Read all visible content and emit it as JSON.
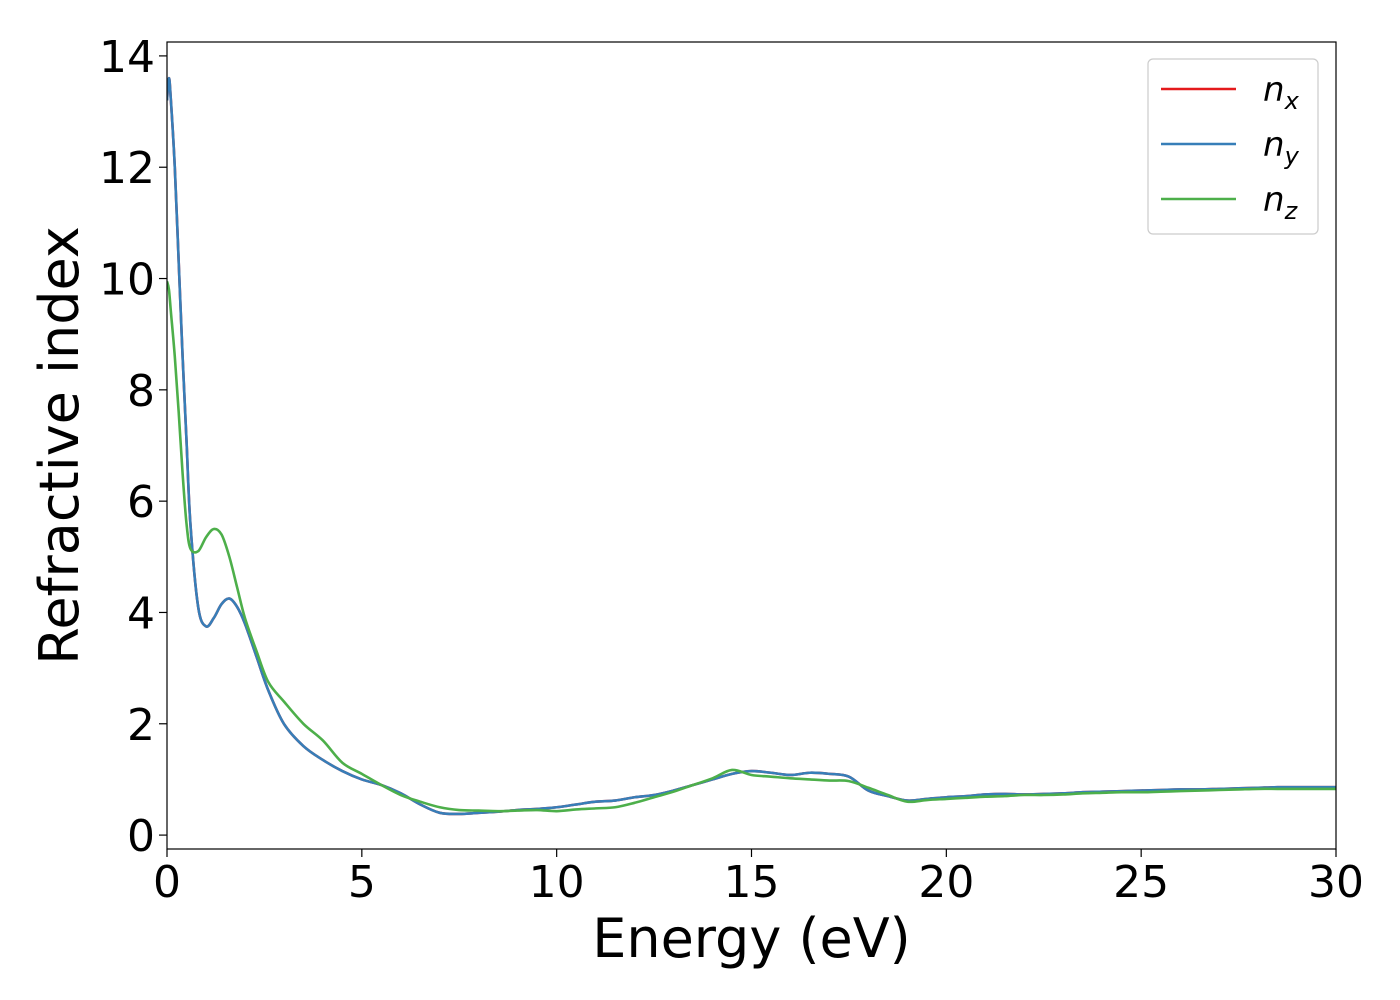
{
  "chart_data": {
    "type": "line",
    "title": "",
    "xlabel": "Energy (eV)",
    "ylabel": "Refractive index",
    "xlim": [
      0,
      30
    ],
    "ylim": [
      -0.25,
      14.25
    ],
    "xticks": [
      0,
      5,
      10,
      15,
      20,
      25,
      30
    ],
    "yticks": [
      0,
      2,
      4,
      6,
      8,
      10,
      12,
      14
    ],
    "grid": false,
    "legend_position": "top-right",
    "series": [
      {
        "name": "n_x",
        "label_base": "n",
        "label_sub": "x",
        "color": "#e41a1c",
        "x": [
          0,
          0.05,
          0.1,
          0.2,
          0.3,
          0.4,
          0.5,
          0.6,
          0.8,
          1.0,
          1.2,
          1.4,
          1.6,
          1.8,
          2.0,
          2.3,
          2.6,
          3.0,
          3.5,
          4.0,
          4.5,
          5.0,
          5.5,
          6.0,
          6.5,
          7.0,
          7.5,
          8.0,
          8.5,
          9.0,
          9.5,
          10.0,
          10.5,
          11.0,
          11.5,
          12.0,
          12.5,
          13.0,
          13.5,
          14.0,
          14.5,
          15.0,
          15.5,
          16.0,
          16.5,
          17.0,
          17.5,
          18.0,
          18.5,
          19.0,
          19.5,
          20.0,
          20.5,
          21.0,
          21.5,
          22.0,
          22.5,
          23.0,
          23.5,
          24.0,
          24.5,
          25.0,
          25.5,
          26.0,
          26.5,
          27.0,
          27.5,
          28.0,
          28.5,
          29.0,
          29.5,
          30.0
        ],
        "y": [
          13.2,
          13.6,
          13.2,
          12.0,
          10.3,
          8.6,
          7.1,
          5.6,
          4.1,
          3.75,
          3.9,
          4.15,
          4.25,
          4.1,
          3.8,
          3.2,
          2.6,
          2.0,
          1.6,
          1.35,
          1.15,
          1.0,
          0.9,
          0.75,
          0.55,
          0.4,
          0.38,
          0.4,
          0.42,
          0.45,
          0.47,
          0.5,
          0.55,
          0.6,
          0.62,
          0.68,
          0.72,
          0.8,
          0.9,
          1.0,
          1.1,
          1.15,
          1.12,
          1.08,
          1.12,
          1.1,
          1.05,
          0.8,
          0.7,
          0.62,
          0.65,
          0.68,
          0.7,
          0.73,
          0.74,
          0.73,
          0.74,
          0.75,
          0.77,
          0.78,
          0.79,
          0.8,
          0.81,
          0.82,
          0.82,
          0.83,
          0.84,
          0.85,
          0.86,
          0.86,
          0.86,
          0.86
        ]
      },
      {
        "name": "n_y",
        "label_base": "n",
        "label_sub": "y",
        "color": "#377eb8",
        "x": [
          0,
          0.05,
          0.1,
          0.2,
          0.3,
          0.4,
          0.5,
          0.6,
          0.8,
          1.0,
          1.2,
          1.4,
          1.6,
          1.8,
          2.0,
          2.3,
          2.6,
          3.0,
          3.5,
          4.0,
          4.5,
          5.0,
          5.5,
          6.0,
          6.5,
          7.0,
          7.5,
          8.0,
          8.5,
          9.0,
          9.5,
          10.0,
          10.5,
          11.0,
          11.5,
          12.0,
          12.5,
          13.0,
          13.5,
          14.0,
          14.5,
          15.0,
          15.5,
          16.0,
          16.5,
          17.0,
          17.5,
          18.0,
          18.5,
          19.0,
          19.5,
          20.0,
          20.5,
          21.0,
          21.5,
          22.0,
          22.5,
          23.0,
          23.5,
          24.0,
          24.5,
          25.0,
          25.5,
          26.0,
          26.5,
          27.0,
          27.5,
          28.0,
          28.5,
          29.0,
          29.5,
          30.0
        ],
        "y": [
          13.2,
          13.6,
          13.2,
          12.0,
          10.3,
          8.6,
          7.1,
          5.6,
          4.1,
          3.75,
          3.9,
          4.15,
          4.25,
          4.1,
          3.8,
          3.2,
          2.6,
          2.0,
          1.6,
          1.35,
          1.15,
          1.0,
          0.9,
          0.75,
          0.55,
          0.4,
          0.38,
          0.4,
          0.42,
          0.45,
          0.47,
          0.5,
          0.55,
          0.6,
          0.62,
          0.68,
          0.72,
          0.8,
          0.9,
          1.0,
          1.1,
          1.15,
          1.12,
          1.08,
          1.12,
          1.1,
          1.05,
          0.8,
          0.7,
          0.62,
          0.65,
          0.68,
          0.7,
          0.73,
          0.74,
          0.73,
          0.74,
          0.75,
          0.77,
          0.78,
          0.79,
          0.8,
          0.81,
          0.82,
          0.82,
          0.83,
          0.84,
          0.85,
          0.86,
          0.86,
          0.86,
          0.86
        ]
      },
      {
        "name": "n_z",
        "label_base": "n",
        "label_sub": "z",
        "color": "#4daf4a",
        "x": [
          0,
          0.05,
          0.1,
          0.2,
          0.3,
          0.4,
          0.5,
          0.6,
          0.8,
          1.0,
          1.2,
          1.4,
          1.6,
          1.8,
          2.0,
          2.3,
          2.6,
          3.0,
          3.5,
          4.0,
          4.5,
          5.0,
          5.5,
          6.0,
          6.5,
          7.0,
          7.5,
          8.0,
          8.5,
          9.0,
          9.5,
          10.0,
          10.5,
          11.0,
          11.5,
          12.0,
          12.5,
          13.0,
          13.5,
          14.0,
          14.5,
          15.0,
          15.5,
          16.0,
          16.5,
          17.0,
          17.5,
          18.0,
          18.5,
          19.0,
          19.5,
          20.0,
          20.5,
          21.0,
          21.5,
          22.0,
          22.5,
          23.0,
          23.5,
          24.0,
          24.5,
          25.0,
          25.5,
          26.0,
          26.5,
          27.0,
          27.5,
          28.0,
          28.5,
          29.0,
          29.5,
          30.0
        ],
        "y": [
          9.95,
          9.8,
          9.4,
          8.6,
          7.6,
          6.5,
          5.6,
          5.15,
          5.1,
          5.35,
          5.5,
          5.4,
          5.0,
          4.45,
          3.9,
          3.3,
          2.75,
          2.4,
          2.0,
          1.7,
          1.3,
          1.1,
          0.9,
          0.72,
          0.6,
          0.5,
          0.45,
          0.44,
          0.43,
          0.44,
          0.45,
          0.43,
          0.46,
          0.48,
          0.5,
          0.58,
          0.68,
          0.78,
          0.9,
          1.02,
          1.17,
          1.08,
          1.05,
          1.02,
          1.0,
          0.98,
          0.97,
          0.85,
          0.72,
          0.6,
          0.63,
          0.65,
          0.67,
          0.69,
          0.7,
          0.72,
          0.72,
          0.73,
          0.75,
          0.76,
          0.77,
          0.77,
          0.78,
          0.79,
          0.8,
          0.81,
          0.82,
          0.83,
          0.83,
          0.83,
          0.83,
          0.83
        ]
      }
    ]
  }
}
